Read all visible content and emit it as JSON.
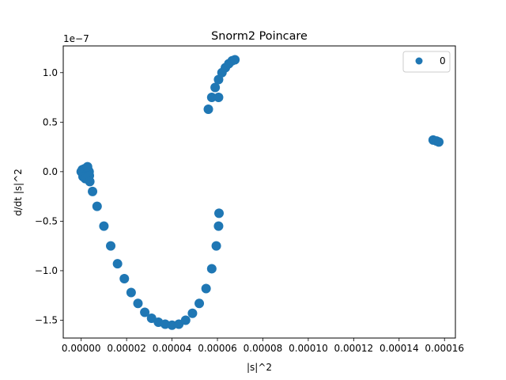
{
  "chart_data": {
    "type": "scatter",
    "title": "Snorm2 Poincare",
    "xlabel": "|s|^2",
    "ylabel": "d/dt |s|^2",
    "y_offset_label": "1e−7",
    "xlim": [
      -7.9e-06,
      0.0001648
    ],
    "ylim": [
      -1.68,
      1.27
    ],
    "y_scale_factor": 1e-07,
    "x_ticks": [
      0,
      2e-05,
      4e-05,
      6e-05,
      8e-05,
      0.0001,
      0.00012,
      0.00014,
      0.00016
    ],
    "x_tick_labels": [
      "0.00000",
      "0.00002",
      "0.00004",
      "0.00006",
      "0.00008",
      "0.00010",
      "0.00012",
      "0.00014",
      "0.00016"
    ],
    "y_ticks": [
      -1.5,
      -1.0,
      -0.5,
      0.0,
      0.5,
      1.0
    ],
    "y_tick_labels": [
      "−1.5",
      "−1.0",
      "−0.5",
      "0.0",
      "0.5",
      "1.0"
    ],
    "grid": false,
    "legend_position": "top-right",
    "marker_color": "#1f77b4",
    "series": [
      {
        "name": "0",
        "points": [
          [
            0.0,
            0.0
          ],
          [
            5e-07,
            0.02
          ],
          [
            1e-06,
            -0.01
          ],
          [
            1.5e-06,
            0.03
          ],
          [
            2e-06,
            0.01
          ],
          [
            2.5e-06,
            -0.02
          ],
          [
            3e-06,
            0.02
          ],
          [
            3.5e-06,
            0.0
          ],
          [
            8e-07,
            -0.05
          ],
          [
            1.8e-06,
            -0.07
          ],
          [
            2.8e-06,
            0.05
          ],
          [
            3.6e-06,
            -0.04
          ],
          [
            3.8e-06,
            -0.1
          ],
          [
            5e-06,
            -0.2
          ],
          [
            7e-06,
            -0.35
          ],
          [
            1e-05,
            -0.55
          ],
          [
            1.3e-05,
            -0.75
          ],
          [
            1.6e-05,
            -0.93
          ],
          [
            1.9e-05,
            -1.08
          ],
          [
            2.2e-05,
            -1.22
          ],
          [
            2.5e-05,
            -1.33
          ],
          [
            2.8e-05,
            -1.42
          ],
          [
            3.1e-05,
            -1.48
          ],
          [
            3.4e-05,
            -1.52
          ],
          [
            3.7e-05,
            -1.54
          ],
          [
            4e-05,
            -1.55
          ],
          [
            4.3e-05,
            -1.54
          ],
          [
            4.6e-05,
            -1.5
          ],
          [
            4.9e-05,
            -1.43
          ],
          [
            5.2e-05,
            -1.33
          ],
          [
            5.5e-05,
            -1.18
          ],
          [
            5.75e-05,
            -0.98
          ],
          [
            5.95e-05,
            -0.75
          ],
          [
            6.05e-05,
            -0.55
          ],
          [
            6.07e-05,
            -0.42
          ],
          [
            5.6e-05,
            0.63
          ],
          [
            5.75e-05,
            0.75
          ],
          [
            5.9e-05,
            0.85
          ],
          [
            6.05e-05,
            0.93
          ],
          [
            6.2e-05,
            1.0
          ],
          [
            6.35e-05,
            1.05
          ],
          [
            6.5e-05,
            1.09
          ],
          [
            6.65e-05,
            1.12
          ],
          [
            6.77e-05,
            1.13
          ],
          [
            6.05e-05,
            0.75
          ],
          [
            0.000155,
            0.32
          ],
          [
            0.0001565,
            0.31
          ],
          [
            0.0001575,
            0.3
          ]
        ]
      }
    ]
  }
}
